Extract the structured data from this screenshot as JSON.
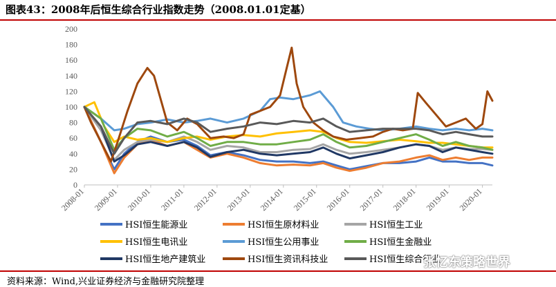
{
  "header": {
    "title": "图表43：2008年后恒生综合行业指数走势（2008.01.01定基）"
  },
  "footer": {
    "source": "资料来源：Wind,兴业证券经济与金融研究院整理"
  },
  "watermark": {
    "text": "张忆东策略世界"
  },
  "chart_data": {
    "type": "line",
    "title": "",
    "xlabel": "",
    "ylabel": "",
    "ylim": [
      0,
      200
    ],
    "yticks": [
      "0",
      "20",
      "40",
      "60",
      "80",
      "100",
      "120",
      "140",
      "160",
      "180",
      "200"
    ],
    "xlim": [
      2008.0,
      2020.3
    ],
    "xtick_labels": [
      "2008-01",
      "2009-01",
      "2010-01",
      "2011-01",
      "2012-01",
      "2013-01",
      "2014-01",
      "2015-01",
      "2016-01",
      "2017-01",
      "2018-01",
      "2019-01",
      "2020-01"
    ],
    "legend_position": "bottom",
    "series": [
      {
        "name": "HSI恒生能源业",
        "color": "#4472c4",
        "x": [
          2008.0,
          2008.5,
          2008.9,
          2009.2,
          2009.6,
          2010.0,
          2010.5,
          2011.0,
          2011.4,
          2011.8,
          2012.3,
          2012.8,
          2013.3,
          2013.8,
          2014.3,
          2014.8,
          2015.2,
          2015.6,
          2016.0,
          2016.5,
          2017.0,
          2017.5,
          2018.0,
          2018.4,
          2018.8,
          2019.2,
          2019.6,
          2020.0,
          2020.3
        ],
        "y": [
          100,
          55,
          20,
          40,
          55,
          62,
          55,
          58,
          50,
          38,
          42,
          38,
          32,
          30,
          30,
          28,
          30,
          25,
          20,
          24,
          28,
          28,
          30,
          35,
          30,
          30,
          28,
          28,
          25
        ]
      },
      {
        "name": "HSI恒生原材料业",
        "color": "#ed7d31",
        "x": [
          2008.0,
          2008.5,
          2008.9,
          2009.2,
          2009.6,
          2010.0,
          2010.5,
          2011.0,
          2011.4,
          2011.8,
          2012.3,
          2012.8,
          2013.3,
          2013.8,
          2014.3,
          2014.8,
          2015.2,
          2015.6,
          2016.0,
          2016.5,
          2017.0,
          2017.5,
          2018.0,
          2018.4,
          2018.8,
          2019.2,
          2019.6,
          2020.0,
          2020.3
        ],
        "y": [
          100,
          55,
          15,
          35,
          52,
          58,
          50,
          55,
          45,
          35,
          40,
          35,
          28,
          25,
          26,
          25,
          28,
          22,
          18,
          22,
          28,
          30,
          35,
          38,
          32,
          35,
          32,
          35,
          35
        ]
      },
      {
        "name": "HSI恒生工业",
        "color": "#a5a5a5",
        "x": [
          2008.0,
          2008.5,
          2008.9,
          2009.2,
          2009.6,
          2010.0,
          2010.5,
          2011.0,
          2011.4,
          2011.8,
          2012.3,
          2012.8,
          2013.3,
          2013.8,
          2014.3,
          2014.8,
          2015.2,
          2015.6,
          2016.0,
          2016.5,
          2017.0,
          2017.5,
          2018.0,
          2018.4,
          2018.8,
          2019.2,
          2019.6,
          2020.0,
          2020.3
        ],
        "y": [
          100,
          70,
          32,
          45,
          55,
          58,
          55,
          62,
          55,
          45,
          50,
          48,
          42,
          42,
          45,
          46,
          52,
          45,
          40,
          42,
          45,
          48,
          52,
          50,
          45,
          48,
          46,
          46,
          45
        ]
      },
      {
        "name": "HSI恒生电讯业",
        "color": "#ffc000",
        "x": [
          2008.0,
          2008.3,
          2008.6,
          2008.9,
          2009.2,
          2009.6,
          2010.0,
          2010.5,
          2011.0,
          2011.4,
          2011.8,
          2012.3,
          2012.8,
          2013.3,
          2013.8,
          2014.3,
          2014.8,
          2015.2,
          2015.6,
          2016.0,
          2016.5,
          2017.0,
          2017.5,
          2018.0,
          2018.4,
          2018.8,
          2019.2,
          2019.6,
          2020.0,
          2020.3
        ],
        "y": [
          100,
          106,
          75,
          55,
          62,
          58,
          60,
          55,
          60,
          62,
          58,
          62,
          64,
          62,
          66,
          68,
          70,
          68,
          60,
          55,
          54,
          56,
          58,
          56,
          54,
          54,
          52,
          50,
          48,
          48
        ]
      },
      {
        "name": "HSI恒生公用事业",
        "color": "#5b9bd5",
        "x": [
          2008.0,
          2008.5,
          2008.9,
          2009.2,
          2009.6,
          2010.0,
          2010.5,
          2011.0,
          2011.4,
          2011.8,
          2012.3,
          2012.8,
          2013.3,
          2013.6,
          2013.9,
          2014.3,
          2014.8,
          2015.1,
          2015.5,
          2015.8,
          2016.2,
          2016.6,
          2017.0,
          2017.5,
          2018.0,
          2018.4,
          2018.8,
          2019.2,
          2019.6,
          2020.0,
          2020.3
        ],
        "y": [
          100,
          85,
          70,
          72,
          78,
          80,
          84,
          80,
          82,
          85,
          80,
          85,
          95,
          110,
          112,
          110,
          115,
          120,
          100,
          80,
          75,
          72,
          70,
          72,
          75,
          72,
          70,
          72,
          70,
          72,
          70
        ]
      },
      {
        "name": "HSI恒生金融业",
        "color": "#70ad47",
        "x": [
          2008.0,
          2008.5,
          2008.9,
          2009.2,
          2009.6,
          2010.0,
          2010.5,
          2011.0,
          2011.4,
          2011.8,
          2012.3,
          2012.8,
          2013.3,
          2013.8,
          2014.3,
          2014.8,
          2015.2,
          2015.6,
          2016.0,
          2016.5,
          2017.0,
          2017.5,
          2018.0,
          2018.4,
          2018.8,
          2019.2,
          2019.6,
          2020.0,
          2020.3
        ],
        "y": [
          100,
          85,
          45,
          60,
          72,
          70,
          62,
          68,
          60,
          50,
          55,
          55,
          52,
          52,
          55,
          58,
          65,
          55,
          48,
          50,
          55,
          60,
          65,
          58,
          50,
          55,
          50,
          48,
          45
        ]
      },
      {
        "name": "HSI恒生地产建筑业",
        "color": "#203864",
        "x": [
          2008.0,
          2008.5,
          2008.9,
          2009.2,
          2009.6,
          2010.0,
          2010.5,
          2011.0,
          2011.4,
          2011.8,
          2012.3,
          2012.8,
          2013.3,
          2013.8,
          2014.3,
          2014.8,
          2015.2,
          2015.6,
          2016.0,
          2016.5,
          2017.0,
          2017.5,
          2018.0,
          2018.4,
          2018.8,
          2019.2,
          2019.6,
          2020.0,
          2020.3
        ],
        "y": [
          100,
          75,
          30,
          38,
          52,
          55,
          50,
          55,
          48,
          36,
          42,
          45,
          40,
          38,
          40,
          42,
          48,
          40,
          34,
          38,
          42,
          48,
          52,
          50,
          42,
          48,
          45,
          42,
          40
        ]
      },
      {
        "name": "HSI恒生资讯科技业",
        "color": "#9e480e",
        "x": [
          2008.0,
          2008.2,
          2008.5,
          2008.8,
          2009.0,
          2009.3,
          2009.6,
          2009.9,
          2010.1,
          2010.3,
          2010.5,
          2010.8,
          2011.1,
          2011.4,
          2011.8,
          2012.2,
          2012.5,
          2012.8,
          2013.0,
          2013.3,
          2013.6,
          2013.9,
          2014.1,
          2014.25,
          2014.4,
          2014.6,
          2014.9,
          2015.2,
          2015.5,
          2015.9,
          2016.3,
          2016.7,
          2017.0,
          2017.3,
          2017.6,
          2017.9,
          2018.05,
          2018.3,
          2018.6,
          2018.9,
          2019.2,
          2019.5,
          2019.8,
          2020.0,
          2020.15,
          2020.3
        ],
        "y": [
          100,
          80,
          55,
          30,
          55,
          95,
          130,
          150,
          140,
          110,
          80,
          70,
          85,
          78,
          60,
          62,
          60,
          65,
          90,
          95,
          100,
          115,
          150,
          176,
          130,
          100,
          80,
          70,
          62,
          58,
          60,
          62,
          68,
          72,
          70,
          72,
          118,
          105,
          90,
          75,
          80,
          85,
          72,
          78,
          120,
          108
        ]
      },
      {
        "name": "HSI恒生综合行业",
        "color": "#595959",
        "x": [
          2008.0,
          2008.5,
          2008.9,
          2009.2,
          2009.6,
          2010.0,
          2010.5,
          2011.0,
          2011.4,
          2011.8,
          2012.3,
          2012.8,
          2013.3,
          2013.8,
          2014.3,
          2014.8,
          2015.2,
          2015.6,
          2016.0,
          2016.5,
          2017.0,
          2017.5,
          2018.0,
          2018.4,
          2018.8,
          2019.2,
          2019.6,
          2020.0,
          2020.3
        ],
        "y": [
          100,
          75,
          40,
          60,
          80,
          82,
          78,
          85,
          80,
          68,
          72,
          75,
          80,
          78,
          82,
          80,
          85,
          75,
          68,
          70,
          72,
          72,
          72,
          70,
          65,
          68,
          65,
          62,
          62
        ]
      }
    ]
  }
}
